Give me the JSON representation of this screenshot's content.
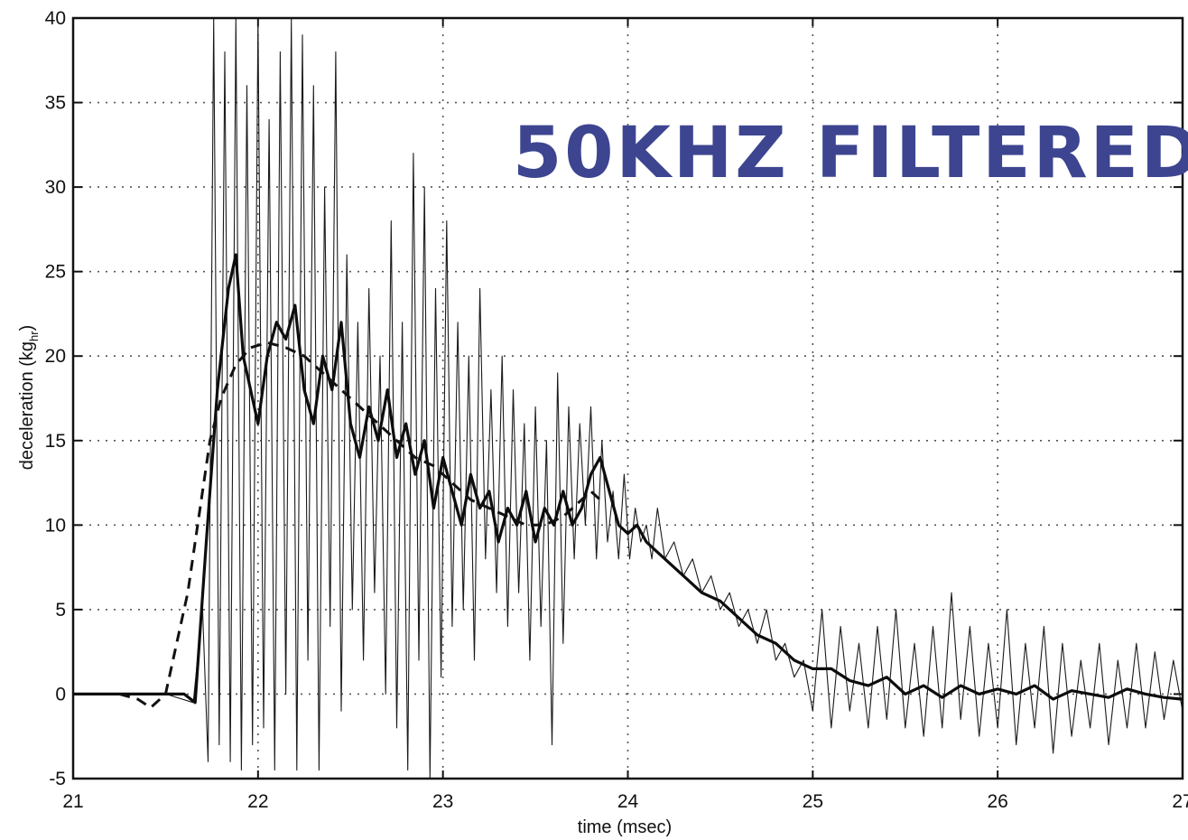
{
  "chart_data": {
    "type": "line",
    "title": "",
    "xlabel": "time (msec)",
    "ylabel_main": "deceleration (kg",
    "ylabel_sub": "hr",
    "ylabel_close": ")",
    "xlim": [
      21,
      27
    ],
    "ylim": [
      -5,
      40
    ],
    "x_ticks": [
      "21",
      "22",
      "23",
      "24",
      "25",
      "26",
      "27"
    ],
    "y_ticks": [
      "40",
      "35",
      "30",
      "25",
      "20",
      "15",
      "10",
      "5",
      "0",
      "-5"
    ],
    "grid": true,
    "annotation": "50KHZ FILTERED",
    "series": [
      {
        "style": "thin",
        "x": [
          21.0,
          21.5,
          21.65,
          21.7,
          21.73,
          21.76,
          21.79,
          21.82,
          21.85,
          21.88,
          21.91,
          21.94,
          21.97,
          22.0,
          22.03,
          22.06,
          22.09,
          22.12,
          22.15,
          22.18,
          22.21,
          22.24,
          22.27,
          22.3,
          22.33,
          22.36,
          22.39,
          22.42,
          22.45,
          22.48,
          22.51,
          22.54,
          22.57,
          22.6,
          22.63,
          22.66,
          22.69,
          22.72,
          22.75,
          22.78,
          22.81,
          22.84,
          22.87,
          22.9,
          22.93,
          22.96,
          22.99,
          23.02,
          23.05,
          23.08,
          23.11,
          23.14,
          23.17,
          23.2,
          23.23,
          23.26,
          23.29,
          23.32,
          23.35,
          23.38,
          23.41,
          23.44,
          23.47,
          23.5,
          23.53,
          23.56,
          23.59,
          23.62,
          23.65,
          23.68,
          23.71,
          23.74,
          23.77,
          23.8,
          23.83,
          23.86,
          23.89,
          23.92,
          23.95,
          23.98,
          24.01,
          24.04,
          24.07,
          24.1,
          24.13,
          24.16,
          24.2,
          24.25,
          24.3,
          24.35,
          24.4,
          24.45,
          24.5,
          24.55,
          24.6,
          24.65,
          24.7,
          24.75,
          24.8,
          24.85,
          24.9,
          24.95,
          25.0,
          25.05,
          25.1,
          25.15,
          25.2,
          25.25,
          25.3,
          25.35,
          25.4,
          25.45,
          25.5,
          25.55,
          25.6,
          25.65,
          25.7,
          25.75,
          25.8,
          25.85,
          25.9,
          25.95,
          26.0,
          26.05,
          26.1,
          26.15,
          26.2,
          26.25,
          26.3,
          26.35,
          26.4,
          26.45,
          26.5,
          26.55,
          26.6,
          26.65,
          26.7,
          26.75,
          26.8,
          26.85,
          26.9,
          26.95,
          27.0
        ],
        "y": [
          0.0,
          0.0,
          -0.5,
          5.0,
          -4.0,
          40.0,
          -3.0,
          38.0,
          -4.0,
          40.0,
          -4.5,
          36.0,
          -3.0,
          40.0,
          -2.0,
          34.0,
          -4.5,
          38.0,
          0.0,
          40.0,
          -4.5,
          39.0,
          2.0,
          36.0,
          -4.5,
          30.0,
          4.0,
          38.0,
          -1.0,
          26.0,
          5.0,
          22.0,
          2.0,
          24.0,
          6.0,
          20.0,
          0.0,
          28.0,
          -2.0,
          22.0,
          -4.5,
          32.0,
          2.0,
          30.0,
          -5.0,
          24.0,
          1.0,
          28.0,
          4.0,
          22.0,
          5.0,
          20.0,
          2.0,
          24.0,
          8.0,
          18.0,
          6.0,
          20.0,
          4.0,
          18.0,
          6.0,
          16.0,
          2.0,
          17.0,
          4.0,
          15.0,
          -3.0,
          19.0,
          3.0,
          17.0,
          8.0,
          16.0,
          10.0,
          17.0,
          8.0,
          15.0,
          9.0,
          12.0,
          8.0,
          13.0,
          8.0,
          11.0,
          9.0,
          10.0,
          8.0,
          11.0,
          8.0,
          9.0,
          7.0,
          8.0,
          6.0,
          7.0,
          5.0,
          6.0,
          4.0,
          5.0,
          3.0,
          5.0,
          2.0,
          3.0,
          1.0,
          2.0,
          -1.0,
          5.0,
          -2.0,
          4.0,
          -1.0,
          3.0,
          -2.0,
          4.0,
          -1.5,
          5.0,
          -2.0,
          3.0,
          -2.5,
          4.0,
          -2.0,
          6.0,
          -1.5,
          4.0,
          -2.5,
          3.0,
          -2.0,
          5.0,
          -3.0,
          3.0,
          -2.0,
          4.0,
          -3.5,
          3.0,
          -2.5,
          2.0,
          -2.0,
          3.0,
          -3.0,
          2.0,
          -2.0,
          3.0,
          -2.0,
          2.5,
          -1.5,
          2.0,
          -1.0
        ]
      },
      {
        "style": "thick",
        "x": [
          21.0,
          21.4,
          21.6,
          21.66,
          21.72,
          21.78,
          21.84,
          21.88,
          21.92,
          21.96,
          22.0,
          22.05,
          22.1,
          22.15,
          22.2,
          22.25,
          22.3,
          22.35,
          22.4,
          22.45,
          22.5,
          22.55,
          22.6,
          22.65,
          22.7,
          22.75,
          22.8,
          22.85,
          22.9,
          22.95,
          23.0,
          23.05,
          23.1,
          23.15,
          23.2,
          23.25,
          23.3,
          23.35,
          23.4,
          23.45,
          23.5,
          23.55,
          23.6,
          23.65,
          23.7,
          23.75,
          23.8,
          23.85,
          23.9,
          23.95,
          24.0,
          24.05,
          24.1,
          24.15,
          24.2,
          24.3,
          24.4,
          24.5,
          24.6,
          24.7,
          24.8,
          24.9,
          25.0,
          25.1,
          25.2,
          25.3,
          25.4,
          25.5,
          25.6,
          25.7,
          25.8,
          25.9,
          26.0,
          26.1,
          26.2,
          26.3,
          26.4,
          26.5,
          26.6,
          26.7,
          26.8,
          26.9,
          27.0
        ],
        "y": [
          0.0,
          0.0,
          0.0,
          -0.5,
          9.0,
          18.0,
          24.0,
          26.0,
          20.0,
          18.0,
          16.0,
          20.0,
          22.0,
          21.0,
          23.0,
          18.0,
          16.0,
          20.0,
          18.0,
          22.0,
          16.0,
          14.0,
          17.0,
          15.0,
          18.0,
          14.0,
          16.0,
          13.0,
          15.0,
          11.0,
          14.0,
          12.0,
          10.0,
          13.0,
          11.0,
          12.0,
          9.0,
          11.0,
          10.0,
          12.0,
          9.0,
          11.0,
          10.0,
          12.0,
          10.0,
          11.0,
          13.0,
          14.0,
          12.0,
          10.0,
          9.5,
          10.0,
          9.0,
          8.5,
          8.0,
          7.0,
          6.0,
          5.5,
          4.5,
          3.5,
          3.0,
          2.0,
          1.5,
          1.5,
          0.8,
          0.5,
          1.0,
          0.0,
          0.5,
          -0.2,
          0.5,
          0.0,
          0.3,
          0.0,
          0.5,
          -0.3,
          0.2,
          0.0,
          -0.2,
          0.3,
          0.0,
          -0.2,
          -0.3
        ]
      },
      {
        "style": "dashed",
        "x": [
          21.25,
          21.35,
          21.42,
          21.5,
          21.56,
          21.62,
          21.66,
          21.7,
          21.74,
          21.8,
          21.88,
          21.96,
          22.05,
          22.15,
          22.25,
          22.35,
          22.45,
          22.55,
          22.65,
          22.75,
          22.85,
          22.95,
          23.05,
          23.15,
          23.25,
          23.35,
          23.45,
          23.55,
          23.65,
          23.75,
          23.8,
          23.85
        ],
        "y": [
          0.0,
          -0.3,
          -0.8,
          0.0,
          3.0,
          6.0,
          9.0,
          12.0,
          15.0,
          17.5,
          19.5,
          20.5,
          20.8,
          20.5,
          20.0,
          19.0,
          18.0,
          17.0,
          16.0,
          15.0,
          14.0,
          13.5,
          12.5,
          11.5,
          11.0,
          10.5,
          10.0,
          10.0,
          10.5,
          11.5,
          12.0,
          11.5
        ]
      }
    ]
  }
}
